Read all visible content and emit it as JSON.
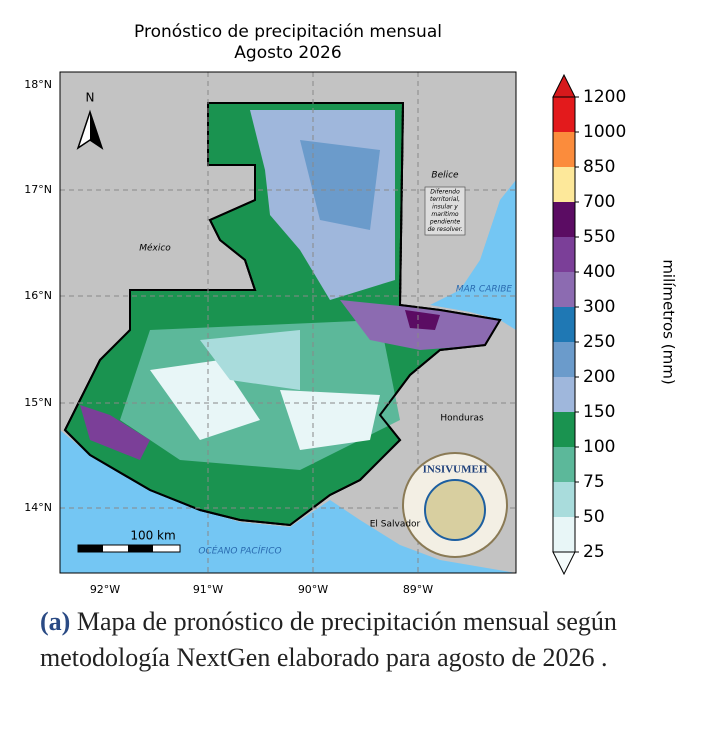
{
  "title": [
    "Pronóstico de precipitación mensual",
    "Agosto 2026"
  ],
  "lat_labels": [
    "18°N",
    "17°N",
    "16°N",
    "15°N",
    "14°N"
  ],
  "lon_labels": [
    "92°W",
    "91°W",
    "90°W",
    "89°W"
  ],
  "north": "N",
  "places": {
    "mexico": "México",
    "belize": "Belice",
    "caribbean": "MAR CARIBE",
    "honduras": "Honduras",
    "el_salvador": "El Salvador",
    "pacific": "OCÉANO PACÍFICO"
  },
  "dispute_note": [
    "Diferendo",
    "territorial,",
    "insular y",
    "marítimo",
    "pendiente",
    "de resolver."
  ],
  "scale_bar": "100 km",
  "logo": "INSIVUMEH",
  "colorbar": {
    "label": "milímetros (mm)",
    "ticks": [
      25,
      50,
      75,
      100,
      150,
      200,
      250,
      300,
      400,
      550,
      700,
      850,
      1000,
      1200
    ],
    "colors": [
      "#e8f6f7",
      "#a9dcdc",
      "#5cb89a",
      "#1a9350",
      "#9fb7dc",
      "#6b9bcb",
      "#1f78b4",
      "#8c6bb1",
      "#7b3f98",
      "#5b0c63",
      "#fde89a",
      "#fb8c3c",
      "#e31a1c"
    ],
    "under_color": "#f4fbfb",
    "over_color": "#d7191c"
  },
  "caption": {
    "label": "(a)",
    "text": "Mapa de pronóstico de precipitación mensual según metodología NextGen elaborado para agosto  de 2026 ."
  }
}
